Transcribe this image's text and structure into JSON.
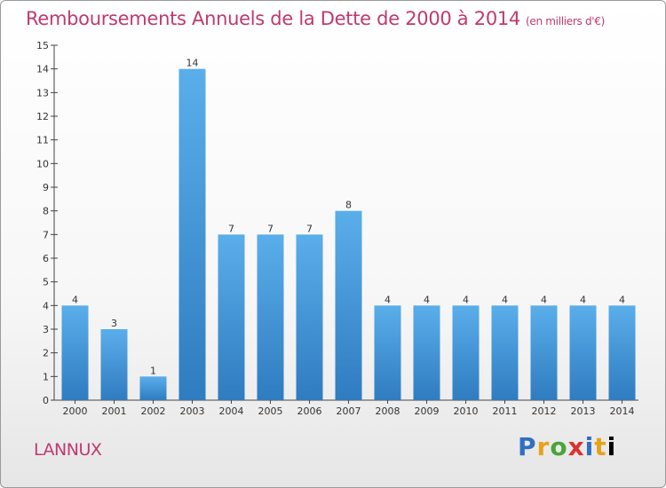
{
  "title": "Remboursements Annuels de la Dette de 2000 à 2014",
  "unit_note": "(en milliers d'€)",
  "commune": "LANNUX",
  "logo_text": "Proxiti",
  "colors": {
    "title": "#c0396e",
    "bar_light": "#5aaeea",
    "bar_dark": "#2f7cc0",
    "axis": "#444444"
  },
  "chart_data": {
    "type": "bar",
    "title": "Remboursements Annuels de la Dette de 2000 à 2014",
    "categories": [
      "2000",
      "2001",
      "2002",
      "2003",
      "2004",
      "2005",
      "2006",
      "2007",
      "2008",
      "2009",
      "2010",
      "2011",
      "2012",
      "2013",
      "2014"
    ],
    "values": [
      4,
      3,
      1,
      14,
      7,
      7,
      7,
      8,
      4,
      4,
      4,
      4,
      4,
      4,
      4
    ],
    "data_labels": [
      "4",
      "3",
      "1",
      "14",
      "7",
      "7",
      "7",
      "8",
      "4",
      "4",
      "4",
      "4",
      "4",
      "4",
      "4"
    ],
    "yticks": [
      0,
      1,
      2,
      3,
      4,
      5,
      6,
      7,
      8,
      9,
      10,
      11,
      12,
      13,
      14,
      15
    ],
    "ylim": [
      0,
      15
    ],
    "xlabel": "",
    "ylabel": "",
    "grid": false,
    "legend": "none"
  }
}
